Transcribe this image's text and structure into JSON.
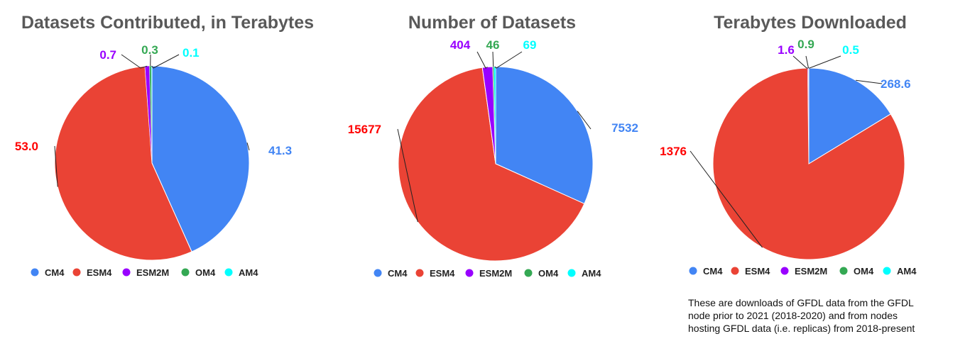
{
  "colors": {
    "CM4": "#4285f4",
    "ESM4": "#ea4335",
    "ESM2M": "#9900ff",
    "OM4": "#34a853",
    "AM4": "#00ffff"
  },
  "legend": [
    "CM4",
    "ESM4",
    "ESM2M",
    "OM4",
    "AM4"
  ],
  "chart_data": [
    {
      "type": "pie",
      "title": "Datasets Contributed, in Terabytes",
      "categories": [
        "CM4",
        "ESM4",
        "ESM2M",
        "OM4",
        "AM4"
      ],
      "values": [
        41.3,
        53.0,
        0.7,
        0.3,
        0.1
      ],
      "labels": [
        "41.3",
        "53.0",
        "0.7",
        "0.3",
        "0.1"
      ],
      "legend_position": "bottom"
    },
    {
      "type": "pie",
      "title": "Number of Datasets",
      "categories": [
        "CM4",
        "ESM4",
        "ESM2M",
        "OM4",
        "AM4"
      ],
      "values": [
        7532,
        15677,
        404,
        46,
        69
      ],
      "labels": [
        "7532",
        "15677",
        "404",
        "46",
        "69"
      ],
      "legend_position": "bottom"
    },
    {
      "type": "pie",
      "title": "Terabytes Downloaded",
      "categories": [
        "CM4",
        "ESM4",
        "ESM2M",
        "OM4",
        "AM4"
      ],
      "values": [
        268.6,
        1376,
        1.6,
        0.9,
        0.5
      ],
      "labels": [
        "268.6",
        "1376",
        "1.6",
        "0.9",
        "0.5"
      ],
      "legend_position": "bottom"
    }
  ],
  "footnote": "These are downloads of GFDL data from the GFDL\nnode prior to 2021 (2018-2020) and from nodes\nhosting GFDL data (i.e. replicas) from 2018-present"
}
